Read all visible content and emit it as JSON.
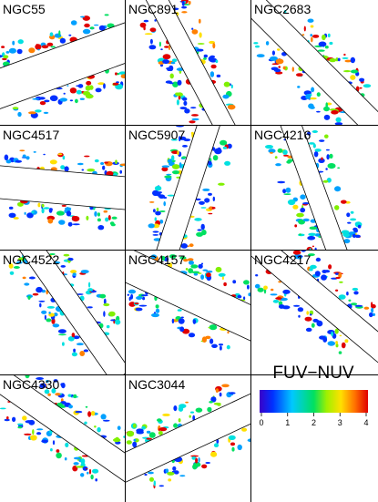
{
  "panels": [
    {
      "label": "NGC55"
    },
    {
      "label": "NGC891"
    },
    {
      "label": "NGC2683"
    },
    {
      "label": "NGC4517"
    },
    {
      "label": "NGC5907"
    },
    {
      "label": "NGC4216"
    },
    {
      "label": "NGC4522"
    },
    {
      "label": "NGC4157"
    },
    {
      "label": "NGC4217"
    },
    {
      "label": "NGC4330"
    },
    {
      "label": "NGC3044"
    }
  ],
  "colorbar": {
    "label": "FUV−NUV",
    "ticks": [
      0,
      1,
      2,
      3,
      4
    ]
  }
}
